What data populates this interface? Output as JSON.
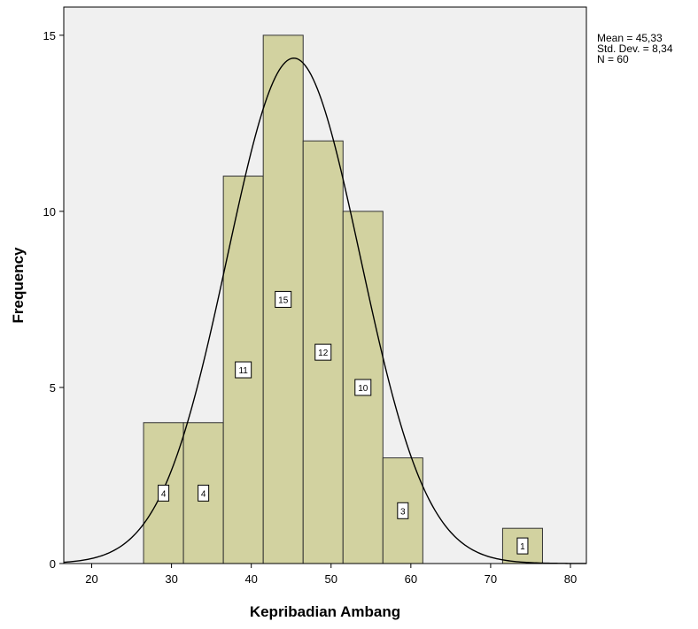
{
  "chart_data": {
    "type": "bar",
    "title": "",
    "xlabel": "Kepribadian Ambang",
    "ylabel": "Frequency",
    "xlim": [
      16.5,
      82
    ],
    "ylim": [
      0,
      15.8
    ],
    "x_ticks": [
      "20",
      "30",
      "40",
      "50",
      "60",
      "70",
      "80"
    ],
    "y_ticks": [
      "0",
      "5",
      "10",
      "15"
    ],
    "bin_width": 5,
    "bins": [
      {
        "start": 26.5,
        "end": 31.5,
        "value": 4,
        "label": "4"
      },
      {
        "start": 31.5,
        "end": 36.5,
        "value": 4,
        "label": "4"
      },
      {
        "start": 36.5,
        "end": 41.5,
        "value": 11,
        "label": "11"
      },
      {
        "start": 41.5,
        "end": 46.5,
        "value": 15,
        "label": "15"
      },
      {
        "start": 46.5,
        "end": 51.5,
        "value": 12,
        "label": "12"
      },
      {
        "start": 51.5,
        "end": 56.5,
        "value": 10,
        "label": "10"
      },
      {
        "start": 56.5,
        "end": 61.5,
        "value": 3,
        "label": "3"
      },
      {
        "start": 71.5,
        "end": 76.5,
        "value": 1,
        "label": "1"
      }
    ],
    "normal_curve": {
      "mean": 45.33,
      "sd": 8.34,
      "n": 60
    },
    "stats": {
      "mean_text": "Mean = 45,33",
      "sd_text": "Std. Dev. = 8,34",
      "n_text": "N = 60"
    },
    "grid": false,
    "colors": {
      "bar_fill": "#d2d2a0",
      "bar_stroke": "#333333",
      "plot_bg": "#f0f0f0",
      "curve": "#000000"
    }
  }
}
